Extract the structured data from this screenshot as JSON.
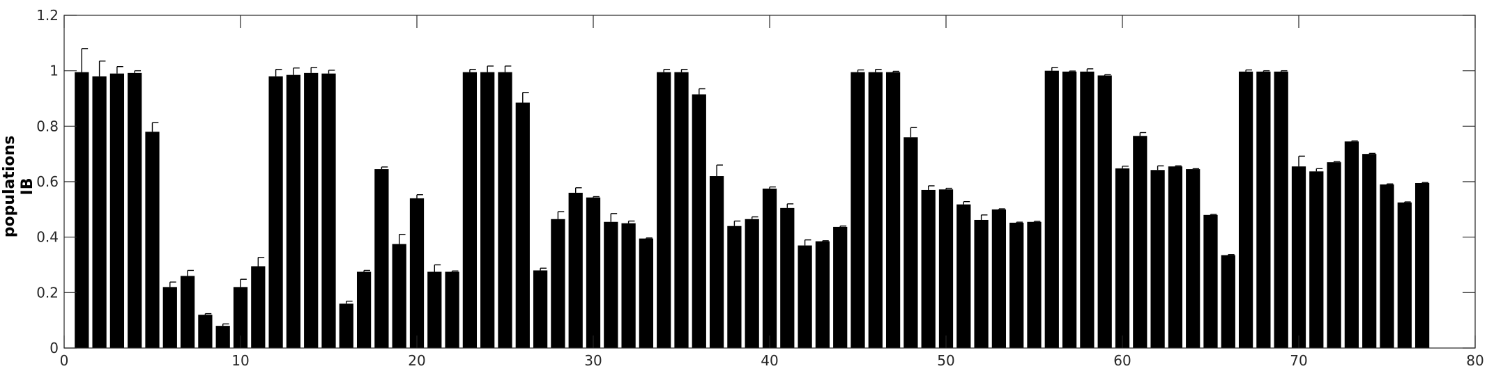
{
  "chart_data": {
    "type": "bar",
    "title": "",
    "xlabel": "",
    "ylabel_lines": [
      "populations",
      "IB"
    ],
    "xlim": [
      0,
      80
    ],
    "ylim": [
      0,
      1.2
    ],
    "xticks": [
      0,
      10,
      20,
      30,
      40,
      50,
      60,
      70,
      80
    ],
    "yticks": [
      0,
      0.2,
      0.4,
      0.6,
      0.8,
      1,
      1.2
    ],
    "xtick_labels": [
      "0",
      "10",
      "20",
      "30",
      "40",
      "50",
      "60",
      "70",
      "80"
    ],
    "ytick_labels": [
      "0",
      "0.2",
      "0.4",
      "0.6",
      "0.8",
      "1",
      "1.2"
    ],
    "grid": false,
    "bar_color": "#000000",
    "x": [
      1,
      2,
      3,
      4,
      5,
      6,
      7,
      8,
      9,
      10,
      11,
      12,
      13,
      14,
      15,
      16,
      17,
      18,
      19,
      20,
      21,
      22,
      23,
      24,
      25,
      26,
      27,
      28,
      29,
      30,
      31,
      32,
      33,
      34,
      35,
      36,
      37,
      38,
      39,
      40,
      41,
      42,
      43,
      44,
      45,
      46,
      47,
      48,
      49,
      50,
      51,
      52,
      53,
      54,
      55,
      56,
      57,
      58,
      59,
      60,
      61,
      62,
      63,
      64,
      65,
      66,
      67,
      68,
      69,
      70,
      71,
      72,
      73,
      74,
      75,
      76,
      77
    ],
    "values": [
      0.995,
      0.98,
      0.99,
      0.992,
      0.78,
      0.22,
      0.26,
      0.12,
      0.08,
      0.22,
      0.295,
      0.98,
      0.985,
      0.992,
      0.99,
      0.16,
      0.275,
      0.645,
      0.375,
      0.54,
      0.275,
      0.275,
      0.995,
      0.995,
      0.995,
      0.885,
      0.28,
      0.465,
      0.56,
      0.543,
      0.455,
      0.45,
      0.395,
      0.995,
      0.995,
      0.915,
      0.62,
      0.44,
      0.465,
      0.575,
      0.505,
      0.37,
      0.385,
      0.437,
      0.995,
      0.995,
      0.995,
      0.76,
      0.57,
      0.572,
      0.518,
      0.462,
      0.5,
      0.452,
      0.455,
      1.0,
      0.997,
      0.997,
      0.983,
      0.648,
      0.765,
      0.642,
      0.655,
      0.645,
      0.48,
      0.335,
      0.997,
      0.997,
      0.997,
      0.655,
      0.637,
      0.67,
      0.745,
      0.7,
      0.59,
      0.525,
      0.595
    ],
    "errors": [
      0.085,
      0.055,
      0.025,
      0.008,
      0.033,
      0.018,
      0.02,
      0.004,
      0.007,
      0.028,
      0.032,
      0.025,
      0.025,
      0.02,
      0.012,
      0.009,
      0.005,
      0.008,
      0.035,
      0.013,
      0.025,
      0.003,
      0.01,
      0.022,
      0.022,
      0.037,
      0.008,
      0.027,
      0.018,
      0.003,
      0.03,
      0.008,
      0.002,
      0.01,
      0.01,
      0.02,
      0.04,
      0.018,
      0.008,
      0.006,
      0.015,
      0.02,
      0.002,
      0.003,
      0.008,
      0.01,
      0.003,
      0.035,
      0.015,
      0.004,
      0.01,
      0.018,
      0.002,
      0.002,
      0.002,
      0.012,
      0.002,
      0.01,
      0.003,
      0.008,
      0.012,
      0.015,
      0.002,
      0.002,
      0.002,
      0.002,
      0.006,
      0.003,
      0.003,
      0.037,
      0.01,
      0.003,
      0.002,
      0.002,
      0.002,
      0.002,
      0.002
    ]
  }
}
